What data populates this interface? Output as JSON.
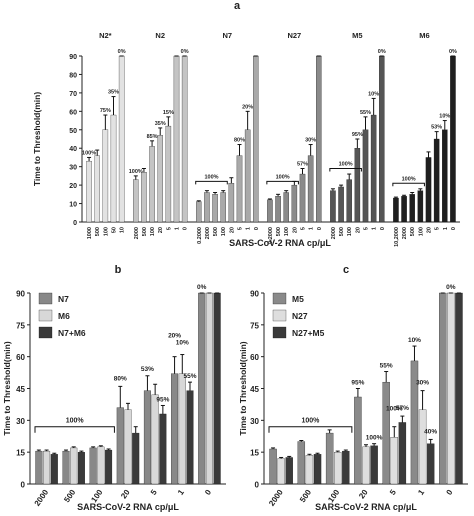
{
  "chart_data": [
    {
      "panel": "a",
      "type": "bar",
      "ylabel": "Time to Threshold(min)",
      "xlabel": "SARS-CoV-2 RNA cp/μL",
      "ylim": [
        0,
        90
      ],
      "yticks": [
        0,
        10,
        20,
        30,
        40,
        50,
        60,
        70,
        80,
        90
      ],
      "groups": [
        {
          "name": "N2*",
          "color": "#e2e2e2",
          "categories": [
            "1000",
            "500",
            "100",
            "50",
            "10"
          ],
          "values": [
            33,
            36,
            50,
            58,
            90
          ],
          "errors": [
            2,
            3,
            8,
            10,
            0
          ],
          "labels": [
            "100%",
            "",
            "75%",
            "35%",
            "0%"
          ],
          "bracket": ""
        },
        {
          "name": "N2",
          "color": "#c4c4c4",
          "categories": [
            "2000",
            "500",
            "100",
            "20",
            "5",
            "1",
            "0"
          ],
          "values": [
            23,
            27,
            41,
            47,
            52,
            90,
            90
          ],
          "errors": [
            2,
            2,
            3,
            4,
            5,
            0,
            0
          ],
          "labels": [
            "100%",
            "",
            "85%",
            "35%",
            "15%",
            "",
            "0%"
          ],
          "bracket": ""
        },
        {
          "name": "N7",
          "color": "#a9a9a9",
          "categories": [
            "0.2000",
            "2000",
            "500",
            "100",
            "20",
            "5",
            "1",
            "0"
          ],
          "values": [
            11,
            16,
            15,
            16,
            21,
            36,
            50,
            90
          ],
          "errors": [
            0.5,
            1,
            1,
            1,
            3,
            6,
            10,
            0
          ],
          "labels": [
            "",
            "",
            "",
            "",
            "",
            "80%",
            "20%",
            ""
          ],
          "bracket": "100%"
        },
        {
          "name": "N27",
          "color": "#8a8a8a",
          "categories": [
            "0.2000",
            "500",
            "100",
            "20",
            "5",
            "1",
            "0"
          ],
          "values": [
            12,
            14,
            16,
            20,
            26,
            36,
            90
          ],
          "errors": [
            0.5,
            1,
            1,
            2,
            3,
            6,
            0
          ],
          "labels": [
            "",
            "",
            "",
            "",
            "57%",
            "30%",
            ""
          ],
          "bracket": "100%"
        },
        {
          "name": "M5",
          "color": "#555555",
          "categories": [
            "2000",
            "500",
            "100",
            "20",
            "5",
            "1",
            "0"
          ],
          "values": [
            17,
            19,
            23,
            40,
            50,
            58,
            90
          ],
          "errors": [
            1,
            1,
            3,
            5,
            7,
            9,
            0
          ],
          "labels": [
            "",
            "",
            "",
            "95%",
            "55%",
            "10%",
            "0%"
          ],
          "bracket": "100%"
        },
        {
          "name": "M6",
          "color": "#1f1f1f",
          "categories": [
            "10,2000",
            "2000",
            "500",
            "100",
            "20",
            "5",
            "1",
            "0"
          ],
          "values": [
            13,
            14,
            15,
            17,
            35,
            45,
            50,
            90
          ],
          "errors": [
            0.5,
            0.5,
            1,
            1,
            3,
            4,
            5,
            0
          ],
          "labels": [
            "",
            "",
            "",
            "",
            "",
            "53%",
            "10%",
            "0%"
          ],
          "bracket": "100%"
        }
      ]
    },
    {
      "panel": "b",
      "type": "bar",
      "ylabel": "Time to Threshold(min)",
      "xlabel": "SARS-CoV-2 RNA cp/μL",
      "ylim": [
        0,
        90
      ],
      "yticks": [
        0,
        15,
        30,
        45,
        60,
        75,
        90
      ],
      "categories": [
        "2000",
        "500",
        "100",
        "20",
        "5",
        "1",
        "0"
      ],
      "series": [
        {
          "name": "N7",
          "color": "#888888",
          "values": [
            15.5,
            15.5,
            17,
            36,
            44,
            52,
            90
          ],
          "errors": [
            0.5,
            0.5,
            0.5,
            10,
            7,
            8,
            0
          ]
        },
        {
          "name": "M6",
          "color": "#d8d8d8",
          "values": [
            15.5,
            17,
            17.5,
            35,
            42,
            52,
            90
          ],
          "errors": [
            0.5,
            0.5,
            0.5,
            3,
            5,
            9,
            0
          ]
        },
        {
          "name": "N7+M6",
          "color": "#3a3a3a",
          "values": [
            14,
            15,
            16,
            24,
            33,
            44,
            90
          ],
          "errors": [
            0.5,
            0.5,
            0.5,
            3,
            4,
            4,
            0
          ]
        }
      ],
      "bracket": "100%",
      "annotations": [
        "80%",
        "53%",
        "95%",
        "20%",
        "10%",
        "55%",
        "0%"
      ]
    },
    {
      "panel": "c",
      "type": "bar",
      "ylabel": "Time to Threshold(min)",
      "xlabel": "SARS-CoV-2 RNA cp/μL",
      "ylim": [
        0,
        90
      ],
      "yticks": [
        0,
        15,
        30,
        45,
        60,
        75,
        90
      ],
      "categories": [
        "2000",
        "500",
        "100",
        "20",
        "5",
        "1",
        "0"
      ],
      "series": [
        {
          "name": "M5",
          "color": "#8a8a8a",
          "values": [
            16.5,
            20,
            24,
            41,
            48,
            58,
            90
          ],
          "errors": [
            0.5,
            0.5,
            1.5,
            4,
            5,
            7,
            0
          ]
        },
        {
          "name": "N27",
          "color": "#dedede",
          "values": [
            12,
            13.5,
            15,
            17.5,
            22,
            35,
            90
          ],
          "errors": [
            0.5,
            0.5,
            0.5,
            1,
            5,
            9,
            0
          ]
        },
        {
          "name": "N27+M5",
          "color": "#3a3a3a",
          "values": [
            12.5,
            14,
            15.5,
            18,
            29,
            19,
            90
          ],
          "errors": [
            0.5,
            0.5,
            0.5,
            1,
            3,
            2,
            0
          ]
        }
      ],
      "bracket": "100%",
      "annotations": [
        "95%",
        "100%",
        "55%",
        "57%",
        "100%",
        "10%",
        "30%",
        "40%",
        "0%"
      ]
    }
  ],
  "panels": {
    "a": {
      "letter": "a"
    },
    "b": {
      "letter": "b",
      "legend": [
        "N7",
        "M6",
        "N7+M6"
      ]
    },
    "c": {
      "letter": "c",
      "legend": [
        "M5",
        "N27",
        "N27+M5"
      ]
    }
  }
}
